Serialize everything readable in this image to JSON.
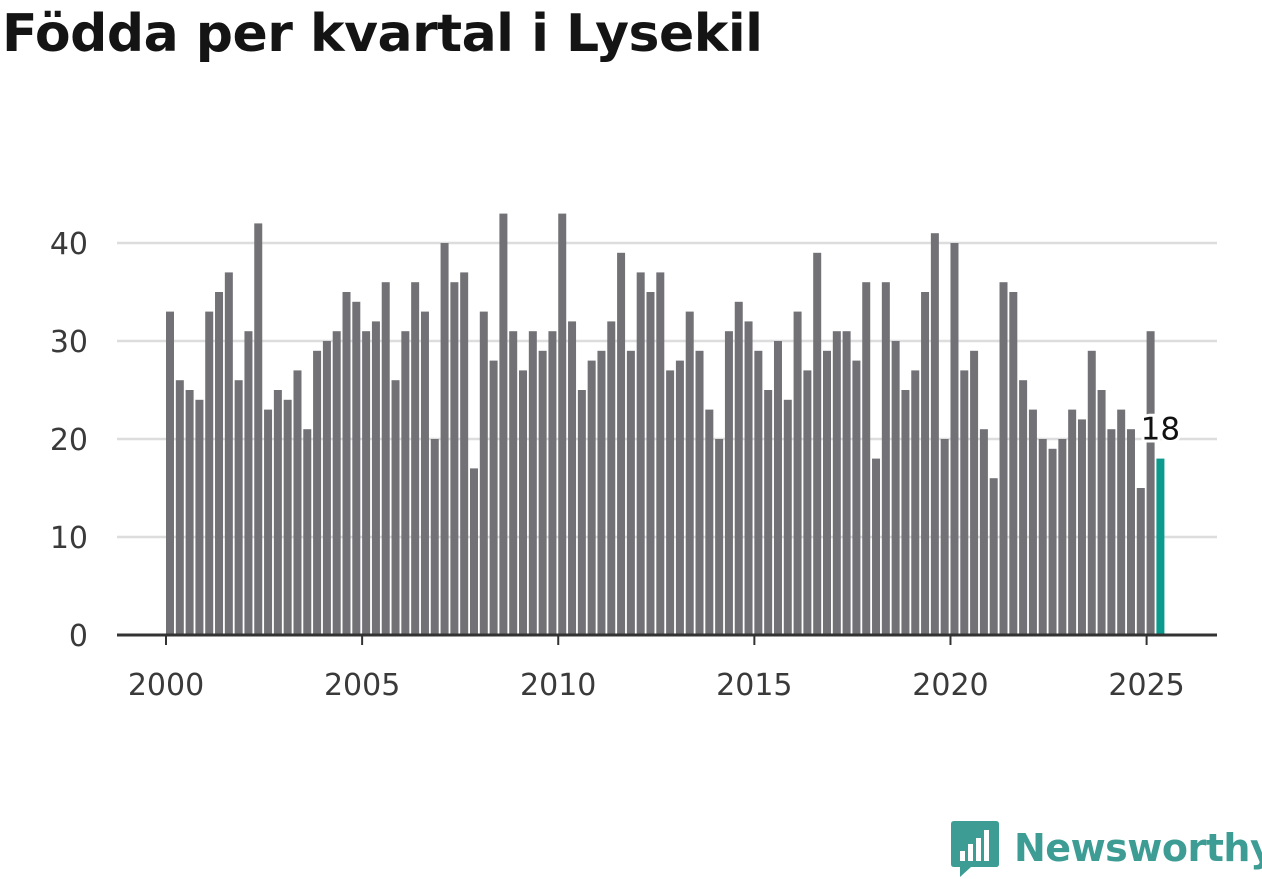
{
  "title": "Födda per kvartal i Lysekil",
  "brand": {
    "name": "Newsworthy",
    "icon": "newsworthy-logo-icon",
    "color": "#3d9d95"
  },
  "colors": {
    "bar": "#727176",
    "highlight": "#0b9b8e",
    "grid": "#dddddd",
    "axis": "#333333"
  },
  "chart_data": {
    "type": "bar",
    "title": "Födda per kvartal i Lysekil",
    "xlabel": "",
    "ylabel": "",
    "x_ticks": [
      "2000",
      "2005",
      "2010",
      "2015",
      "2020",
      "2025"
    ],
    "y_ticks": [
      0,
      10,
      20,
      30,
      40
    ],
    "ylim": [
      0,
      45
    ],
    "grid": true,
    "first_period": "2000 Q1",
    "highlight_label": "18",
    "values": [
      33,
      26,
      25,
      24,
      33,
      35,
      37,
      26,
      31,
      42,
      23,
      25,
      24,
      27,
      21,
      29,
      30,
      31,
      35,
      34,
      31,
      32,
      36,
      26,
      31,
      36,
      33,
      20,
      40,
      36,
      37,
      17,
      33,
      28,
      43,
      31,
      27,
      31,
      29,
      31,
      43,
      32,
      25,
      28,
      29,
      32,
      39,
      29,
      37,
      35,
      37,
      27,
      28,
      33,
      29,
      23,
      20,
      31,
      34,
      32,
      29,
      25,
      30,
      24,
      33,
      27,
      39,
      29,
      31,
      31,
      28,
      36,
      18,
      36,
      30,
      25,
      27,
      35,
      41,
      20,
      40,
      27,
      29,
      21,
      16,
      36,
      35,
      26,
      23,
      20,
      19,
      20,
      23,
      22,
      29,
      25,
      21,
      23,
      21,
      15,
      31,
      18
    ]
  }
}
